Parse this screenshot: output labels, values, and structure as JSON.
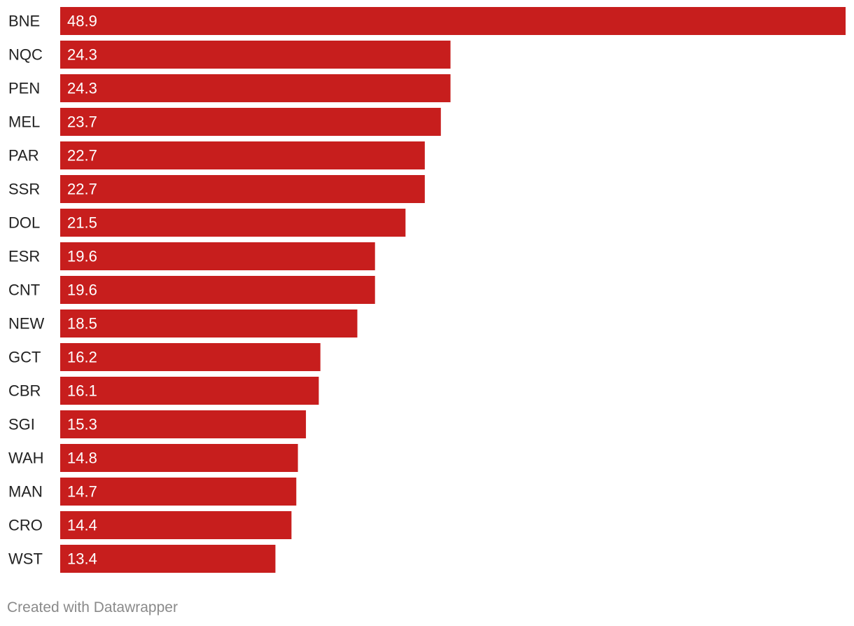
{
  "chart_data": {
    "type": "bar",
    "orientation": "horizontal",
    "categories": [
      "BNE",
      "NQC",
      "PEN",
      "MEL",
      "PAR",
      "SSR",
      "DOL",
      "ESR",
      "CNT",
      "NEW",
      "GCT",
      "CBR",
      "SGI",
      "WAH",
      "MAN",
      "CRO",
      "WST"
    ],
    "values": [
      48.9,
      24.3,
      24.3,
      23.7,
      22.7,
      22.7,
      21.5,
      19.6,
      19.6,
      18.5,
      16.2,
      16.1,
      15.3,
      14.8,
      14.7,
      14.4,
      13.4
    ],
    "value_labels": [
      "48.9",
      "24.3",
      "24.3",
      "23.7",
      "22.7",
      "22.7",
      "21.5",
      "19.6",
      "19.6",
      "18.5",
      "16.2",
      "16.1",
      "15.3",
      "14.8",
      "14.7",
      "14.4",
      "13.4"
    ],
    "xlim": [
      0,
      48.9
    ],
    "title": "",
    "xlabel": "",
    "ylabel": "",
    "grid": false,
    "bar_color": "#c71e1d",
    "label_color": "#222222",
    "value_label_color": "#ffffff"
  },
  "footer": {
    "credit": "Created with Datawrapper"
  }
}
